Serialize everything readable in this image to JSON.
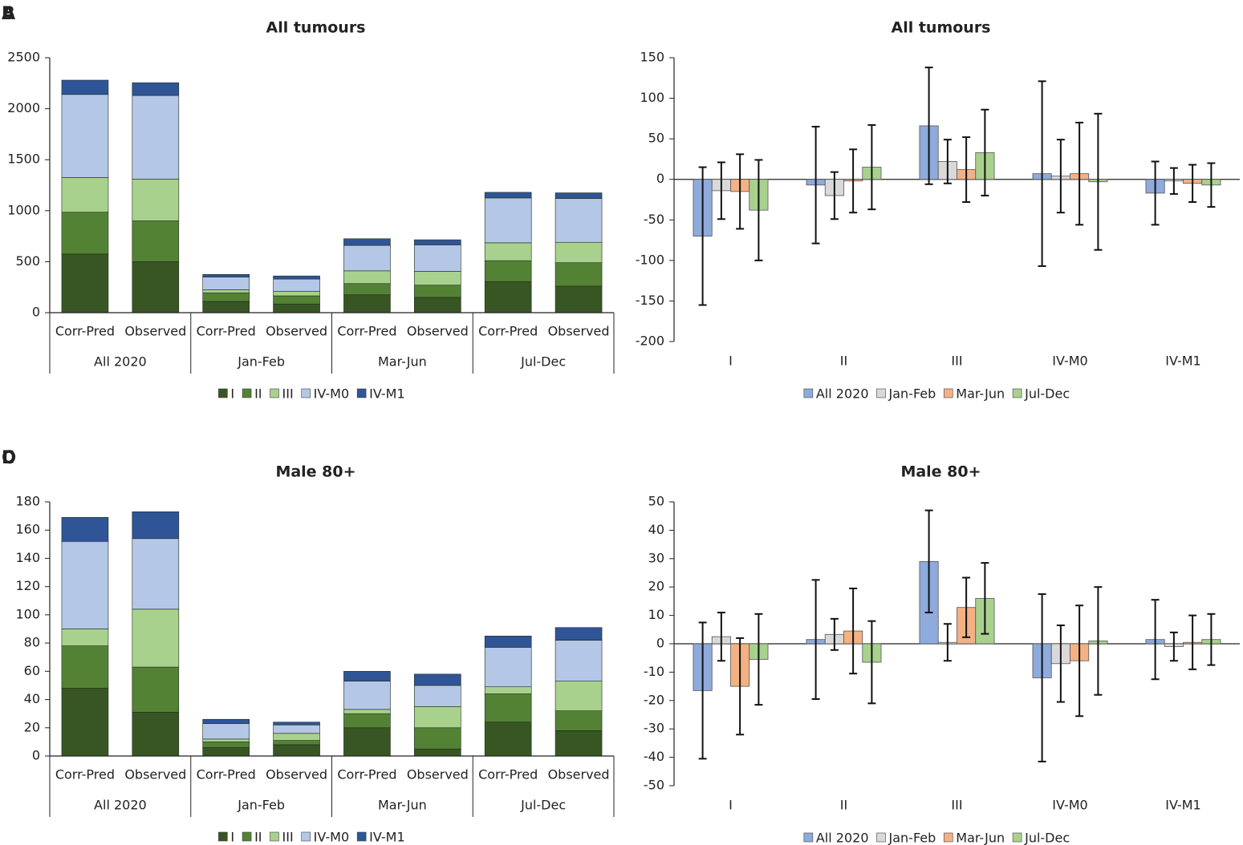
{
  "chart_data": [
    {
      "type": "stacked_bar",
      "panel": "A",
      "title": "All tumours",
      "categories": [
        "Corr-Pred",
        "Observed",
        "Corr-Pred",
        "Observed",
        "Corr-Pred",
        "Observed",
        "Corr-Pred",
        "Observed"
      ],
      "groups": [
        "All 2020",
        "Jan-Feb",
        "Mar-Jun",
        "Jul-Dec"
      ],
      "ylim": [
        0,
        2500
      ],
      "yticks": [
        0,
        500,
        1000,
        1500,
        2000,
        2500
      ],
      "series": [
        {
          "name": "I",
          "color": "#375623",
          "values": [
            575,
            500,
            110,
            85,
            175,
            150,
            305,
            260
          ]
        },
        {
          "name": "II",
          "color": "#548235",
          "values": [
            410,
            400,
            85,
            80,
            110,
            120,
            205,
            230
          ]
        },
        {
          "name": "III",
          "color": "#a9d18e",
          "values": [
            340,
            410,
            30,
            45,
            125,
            135,
            175,
            200
          ]
        },
        {
          "name": "IV-M0",
          "color": "#b4c7e7",
          "values": [
            815,
            820,
            125,
            120,
            250,
            260,
            440,
            430
          ]
        },
        {
          "name": "IV-M1",
          "color": "#2f5597",
          "values": [
            140,
            125,
            25,
            30,
            65,
            50,
            55,
            55
          ]
        }
      ]
    },
    {
      "type": "bar",
      "panel": "B",
      "title": "All tumours",
      "categories": [
        "I",
        "II",
        "III",
        "IV-M0",
        "IV-M1"
      ],
      "ylim": [
        -200,
        150
      ],
      "yticks": [
        -200,
        -150,
        -100,
        -50,
        0,
        50,
        100,
        150
      ],
      "series": [
        {
          "name": "All 2020",
          "color": "#8faadc",
          "values": [
            -70,
            -7,
            66,
            7,
            -17
          ],
          "errors": [
            85,
            72,
            72,
            114,
            39
          ]
        },
        {
          "name": "Jan-Feb",
          "color": "#d9d9d9",
          "values": [
            -14,
            -20,
            22,
            4,
            -2
          ],
          "errors": [
            35,
            29,
            27,
            45,
            16
          ]
        },
        {
          "name": "Mar-Jun",
          "color": "#f4b183",
          "values": [
            -15,
            -2,
            12,
            7,
            -5
          ],
          "errors": [
            46,
            39,
            40,
            63,
            23
          ]
        },
        {
          "name": "Jul-Dec",
          "color": "#a9d18e",
          "values": [
            -38,
            15,
            33,
            -3,
            -7
          ],
          "errors": [
            62,
            52,
            53,
            84,
            27
          ]
        }
      ]
    },
    {
      "type": "stacked_bar",
      "panel": "C",
      "title": "Male 80+",
      "categories": [
        "Corr-Pred",
        "Observed",
        "Corr-Pred",
        "Observed",
        "Corr-Pred",
        "Observed",
        "Corr-Pred",
        "Observed"
      ],
      "groups": [
        "All 2020",
        "Jan-Feb",
        "Mar-Jun",
        "Jul-Dec"
      ],
      "ylim": [
        0,
        180
      ],
      "yticks": [
        0,
        20,
        40,
        60,
        80,
        100,
        120,
        140,
        160,
        180
      ],
      "series": [
        {
          "name": "I",
          "color": "#375623",
          "values": [
            48,
            31,
            6,
            8,
            20,
            5,
            24,
            18
          ]
        },
        {
          "name": "II",
          "color": "#548235",
          "values": [
            30,
            32,
            4,
            3,
            10,
            15,
            20,
            14
          ]
        },
        {
          "name": "III",
          "color": "#a9d18e",
          "values": [
            12,
            41,
            2,
            5,
            3,
            15,
            5,
            21
          ]
        },
        {
          "name": "IV-M0",
          "color": "#b4c7e7",
          "values": [
            62,
            50,
            11,
            6,
            20,
            15,
            28,
            29
          ]
        },
        {
          "name": "IV-M1",
          "color": "#2f5597",
          "values": [
            17,
            19,
            3,
            2,
            7,
            8,
            8,
            9
          ]
        }
      ]
    },
    {
      "type": "bar",
      "panel": "D",
      "title": "Male 80+",
      "categories": [
        "I",
        "II",
        "III",
        "IV-M0",
        "IV-M1"
      ],
      "ylim": [
        -50,
        50
      ],
      "yticks": [
        -50,
        -40,
        -30,
        -20,
        -10,
        0,
        10,
        20,
        30,
        40,
        50
      ],
      "series": [
        {
          "name": "All 2020",
          "color": "#8faadc",
          "values": [
            -16.5,
            1.5,
            29,
            -12,
            1.5
          ],
          "errors": [
            24,
            21,
            18,
            29.5,
            14
          ]
        },
        {
          "name": "Jan-Feb",
          "color": "#d9d9d9",
          "values": [
            2.5,
            3.3,
            0.5,
            -7,
            -1
          ],
          "errors": [
            8.5,
            5.5,
            6.5,
            13.5,
            5
          ]
        },
        {
          "name": "Mar-Jun",
          "color": "#f4b183",
          "values": [
            -15,
            4.5,
            12.8,
            -6,
            0.5
          ],
          "errors": [
            17,
            15,
            10.5,
            19.5,
            9.5
          ]
        },
        {
          "name": "Jul-Dec",
          "color": "#a9d18e",
          "values": [
            -5.5,
            -6.5,
            16,
            1,
            1.5
          ],
          "errors": [
            16,
            14.5,
            12.5,
            19,
            9
          ]
        }
      ]
    }
  ]
}
